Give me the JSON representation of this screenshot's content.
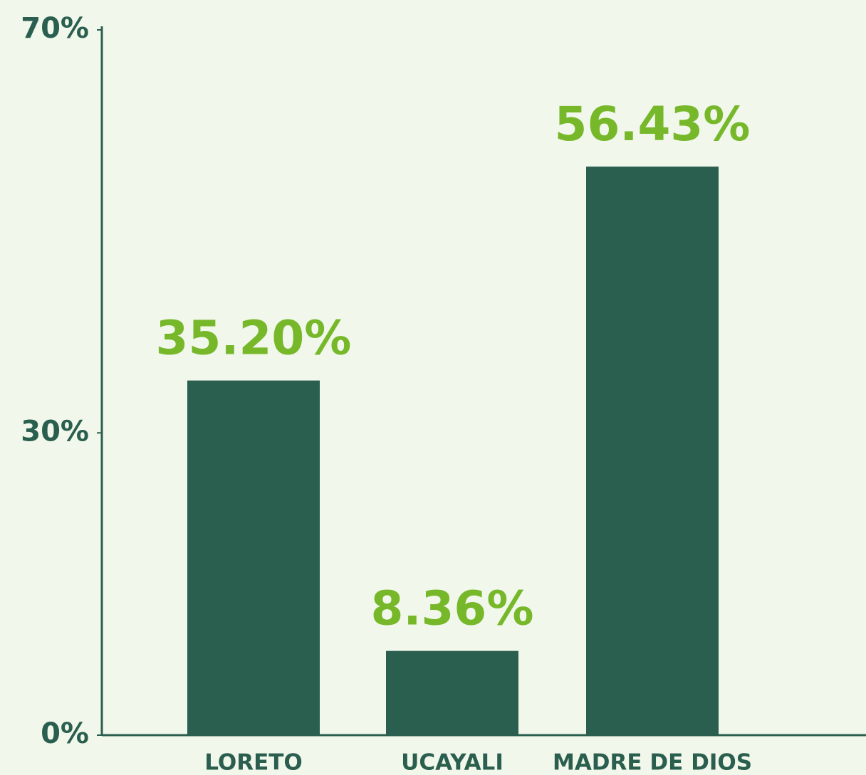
{
  "chart_data": {
    "type": "bar",
    "categories": [
      "LORETO",
      "UCAYALI",
      "MADRE DE DIOS"
    ],
    "values": [
      35.2,
      8.36,
      56.43
    ],
    "value_labels": [
      "35.20%",
      "8.36%",
      "56.43%"
    ],
    "color": "#2a5e4f",
    "ylim": [
      0,
      70
    ],
    "yticks": [
      {
        "value": 0,
        "label": "0%"
      },
      {
        "value": 30,
        "label": "30%"
      },
      {
        "value": 70,
        "label": "70%"
      }
    ]
  }
}
